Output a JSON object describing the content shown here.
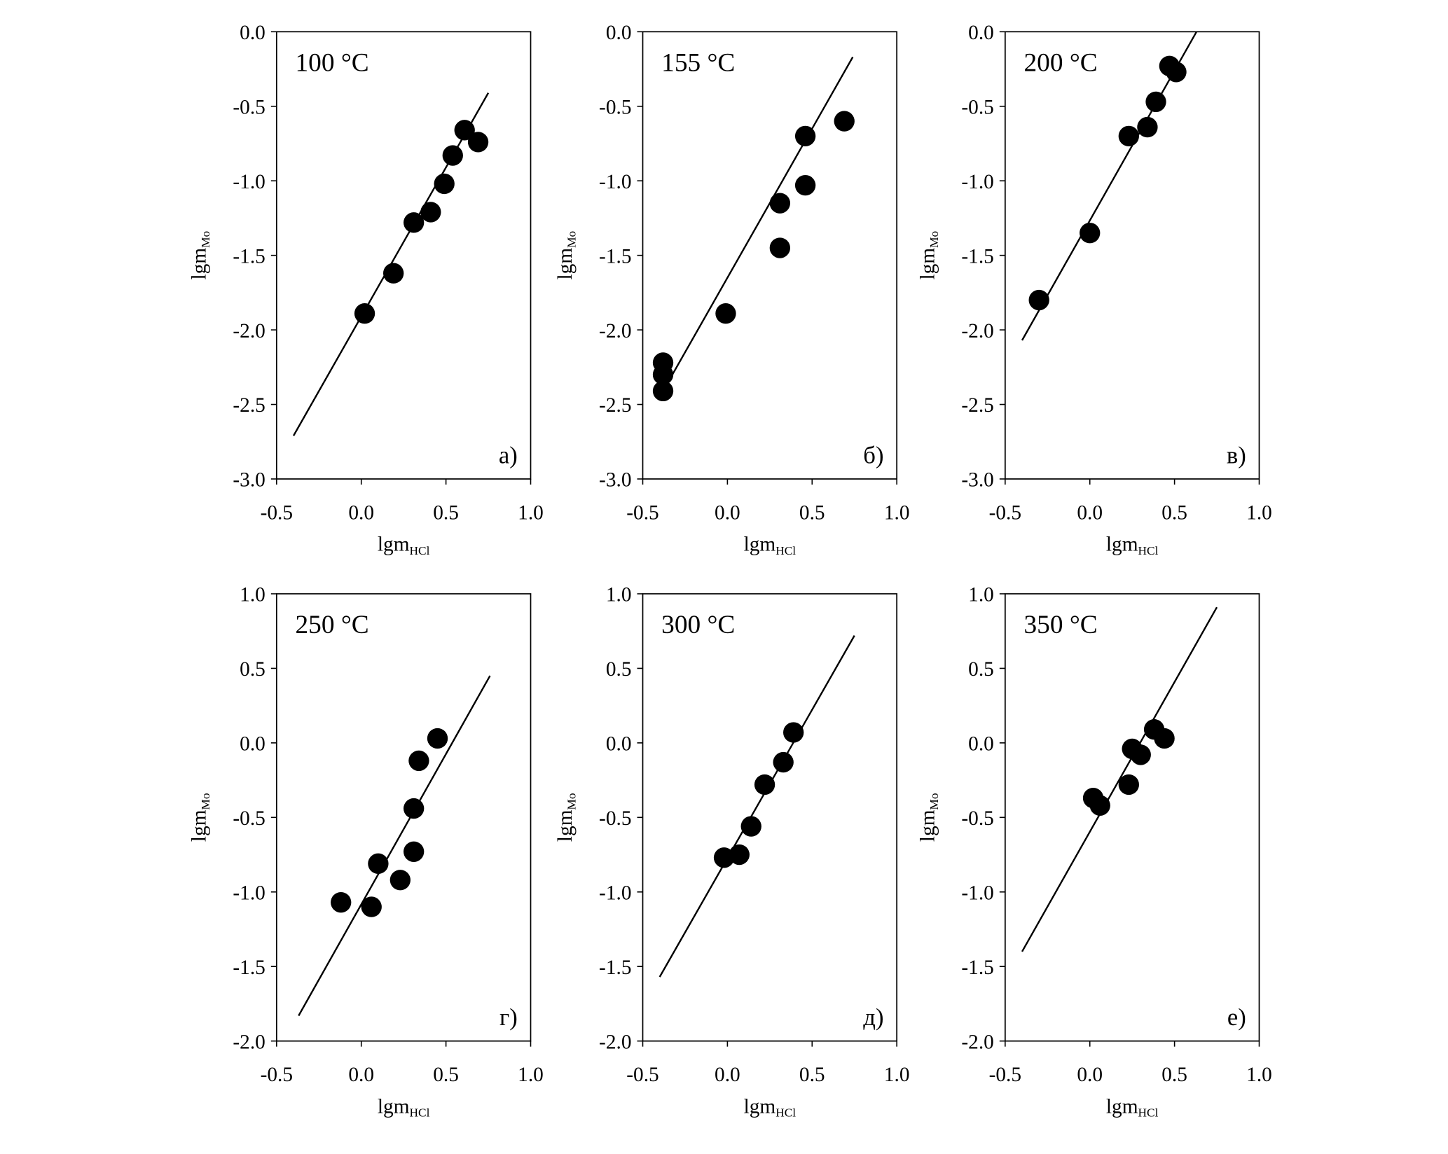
{
  "chart_data": [
    {
      "type": "scatter",
      "title": "100 °C",
      "panel_label": "а)",
      "xlabel": "lgm",
      "xlabel_sub": "HCl",
      "ylabel": "lgm",
      "ylabel_sub": "Mo",
      "xlim": [
        -0.5,
        1.0
      ],
      "ylim": [
        -3.0,
        0.0
      ],
      "xticks": [
        "-0.5",
        "0.0",
        "0.5",
        "1.0"
      ],
      "yticks": [
        "0.0",
        "-0.5",
        "-1.0",
        "-1.5",
        "-2.0",
        "-2.5",
        "-3.0"
      ],
      "points": [
        [
          0.02,
          -1.89
        ],
        [
          0.19,
          -1.62
        ],
        [
          0.31,
          -1.28
        ],
        [
          0.41,
          -1.21
        ],
        [
          0.49,
          -1.02
        ],
        [
          0.54,
          -0.83
        ],
        [
          0.61,
          -0.66
        ],
        [
          0.69,
          -0.74
        ]
      ],
      "fit_line": [
        [
          -0.4,
          -2.71
        ],
        [
          0.75,
          -0.41
        ]
      ]
    },
    {
      "type": "scatter",
      "title": "155 °C",
      "panel_label": "б)",
      "xlabel": "lgm",
      "xlabel_sub": "HCl",
      "ylabel": "lgm",
      "ylabel_sub": "Mo",
      "xlim": [
        -0.5,
        1.0
      ],
      "ylim": [
        -3.0,
        0.0
      ],
      "xticks": [
        "-0.5",
        "0.0",
        "0.5",
        "1.0"
      ],
      "yticks": [
        "0.0",
        "-0.5",
        "-1.0",
        "-1.5",
        "-2.0",
        "-2.5",
        "-3.0"
      ],
      "points": [
        [
          -0.38,
          -2.22
        ],
        [
          -0.38,
          -2.3
        ],
        [
          -0.38,
          -2.41
        ],
        [
          -0.01,
          -1.89
        ],
        [
          0.31,
          -1.15
        ],
        [
          0.31,
          -1.45
        ],
        [
          0.46,
          -0.7
        ],
        [
          0.46,
          -1.03
        ],
        [
          0.69,
          -0.6
        ]
      ],
      "fit_line": [
        [
          -0.4,
          -2.45
        ],
        [
          0.74,
          -0.17
        ]
      ]
    },
    {
      "type": "scatter",
      "title": "200 °C",
      "panel_label": "в)",
      "xlabel": "lgm",
      "xlabel_sub": "HCl",
      "ylabel": "lgm",
      "ylabel_sub": "Mo",
      "xlim": [
        -0.5,
        1.0
      ],
      "ylim": [
        -3.0,
        0.0
      ],
      "xticks": [
        "-0.5",
        "0.0",
        "0.5",
        "1.0"
      ],
      "yticks": [
        "0.0",
        "-0.5",
        "-1.0",
        "-1.5",
        "-2.0",
        "-2.5",
        "-3.0"
      ],
      "points": [
        [
          -0.3,
          -1.8
        ],
        [
          0.0,
          -1.35
        ],
        [
          0.23,
          -0.7
        ],
        [
          0.34,
          -0.64
        ],
        [
          0.39,
          -0.47
        ],
        [
          0.47,
          -0.23
        ],
        [
          0.51,
          -0.27
        ]
      ],
      "fit_line": [
        [
          -0.4,
          -2.07
        ],
        [
          0.63,
          0.0
        ]
      ]
    },
    {
      "type": "scatter",
      "title": "250 °C",
      "panel_label": "г)",
      "xlabel": "lgm",
      "xlabel_sub": "HCl",
      "ylabel": "lgm",
      "ylabel_sub": "Mo",
      "xlim": [
        -0.5,
        1.0
      ],
      "ylim": [
        -2.0,
        1.0
      ],
      "xticks": [
        "-0.5",
        "0.0",
        "0.5",
        "1.0"
      ],
      "yticks": [
        "1.0",
        "0.5",
        "0.0",
        "-0.5",
        "-1.0",
        "-1.5",
        "-2.0"
      ],
      "points": [
        [
          -0.12,
          -1.07
        ],
        [
          0.06,
          -1.1
        ],
        [
          0.1,
          -0.81
        ],
        [
          0.23,
          -0.92
        ],
        [
          0.31,
          -0.44
        ],
        [
          0.31,
          -0.73
        ],
        [
          0.34,
          -0.12
        ],
        [
          0.45,
          0.03
        ]
      ],
      "fit_line": [
        [
          -0.37,
          -1.83
        ],
        [
          0.76,
          0.45
        ]
      ]
    },
    {
      "type": "scatter",
      "title": "300 °C",
      "panel_label": "д)",
      "xlabel": "lgm",
      "xlabel_sub": "HCl",
      "ylabel": "lgm",
      "ylabel_sub": "Mo",
      "xlim": [
        -0.5,
        1.0
      ],
      "ylim": [
        -2.0,
        1.0
      ],
      "xticks": [
        "-0.5",
        "0.0",
        "0.5",
        "1.0"
      ],
      "yticks": [
        "1.0",
        "0.5",
        "0.0",
        "-0.5",
        "-1.0",
        "-1.5",
        "-2.0"
      ],
      "points": [
        [
          -0.02,
          -0.77
        ],
        [
          0.07,
          -0.75
        ],
        [
          0.14,
          -0.56
        ],
        [
          0.22,
          -0.28
        ],
        [
          0.33,
          -0.13
        ],
        [
          0.39,
          0.07
        ]
      ],
      "fit_line": [
        [
          -0.4,
          -1.57
        ],
        [
          0.75,
          0.72
        ]
      ]
    },
    {
      "type": "scatter",
      "title": "350 °C",
      "panel_label": "е)",
      "xlabel": "lgm",
      "xlabel_sub": "HCl",
      "ylabel": "lgm",
      "ylabel_sub": "Mo",
      "xlim": [
        -0.5,
        1.0
      ],
      "ylim": [
        -2.0,
        1.0
      ],
      "xticks": [
        "-0.5",
        "0.0",
        "0.5",
        "1.0"
      ],
      "yticks": [
        "1.0",
        "0.5",
        "0.0",
        "-0.5",
        "-1.0",
        "-1.5",
        "-2.0"
      ],
      "points": [
        [
          0.02,
          -0.37
        ],
        [
          0.06,
          -0.42
        ],
        [
          0.23,
          -0.28
        ],
        [
          0.25,
          -0.04
        ],
        [
          0.3,
          -0.08
        ],
        [
          0.38,
          0.09
        ],
        [
          0.44,
          0.03
        ]
      ],
      "fit_line": [
        [
          -0.4,
          -1.4
        ],
        [
          0.75,
          0.91
        ]
      ]
    }
  ]
}
